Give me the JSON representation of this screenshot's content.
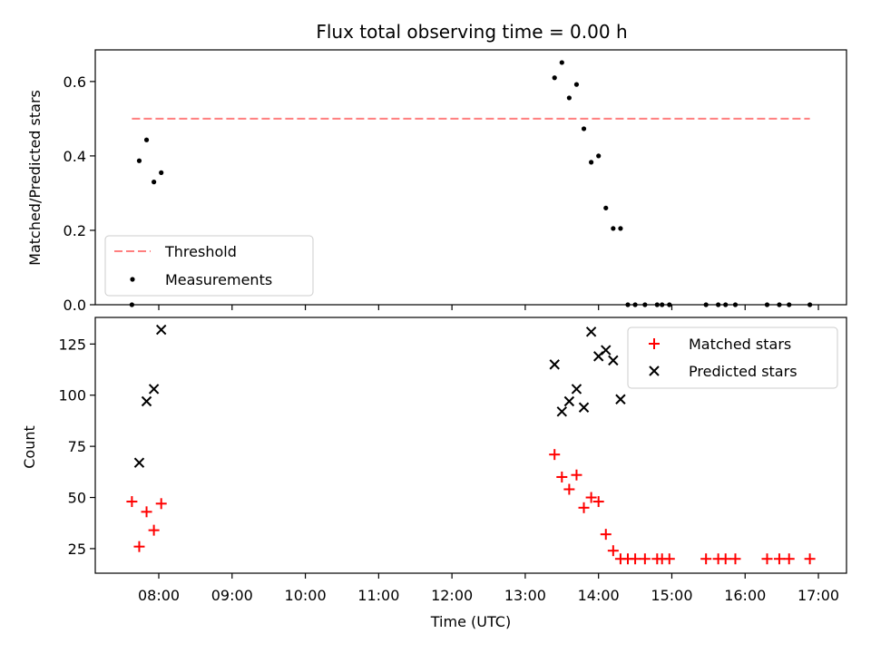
{
  "chart_data": [
    {
      "type": "scatter",
      "title": "Flux total observing time = 0.00 h",
      "xlabel": "",
      "ylabel": "Matched/Predicted stars",
      "ylim": [
        0,
        0.685
      ],
      "yticks": [
        0.0,
        0.2,
        0.4,
        0.6
      ],
      "ytick_labels": [
        "0.0",
        "0.2",
        "0.4",
        "0.6"
      ],
      "grid": false,
      "legend_position": "lower-left",
      "series": [
        {
          "name": "Threshold",
          "kind": "dashed-line",
          "color": "#ff7f7f",
          "x": [
            "07:38",
            "16:53"
          ],
          "y": [
            0.5,
            0.5
          ]
        },
        {
          "name": "Measurements",
          "kind": "dot",
          "color": "#000000",
          "x": [
            "07:38",
            "07:44",
            "07:50",
            "07:56",
            "08:02",
            "13:24",
            "13:30",
            "13:36",
            "13:42",
            "13:48",
            "13:54",
            "14:00",
            "14:06",
            "14:12",
            "14:18",
            "14:24",
            "14:30",
            "14:38",
            "14:48",
            "14:52",
            "14:58",
            "15:28",
            "15:38",
            "15:44",
            "15:52",
            "16:18",
            "16:28",
            "16:36",
            "16:53"
          ],
          "y": [
            0.0,
            0.387,
            0.443,
            0.33,
            0.355,
            0.61,
            0.651,
            0.556,
            0.592,
            0.473,
            0.383,
            0.4,
            0.26,
            0.205,
            0.205,
            0.0,
            0.0,
            0.0,
            0.0,
            0.0,
            0.0,
            0.0,
            0.0,
            0.0,
            0.0,
            0.0,
            0.0,
            0.0,
            0.0
          ]
        }
      ]
    },
    {
      "type": "scatter",
      "title": "",
      "xlabel": "Time (UTC)",
      "ylabel": "Count",
      "ylim": [
        13,
        138
      ],
      "yticks": [
        25,
        50,
        75,
        100,
        125
      ],
      "ytick_labels": [
        "25",
        "50",
        "75",
        "100",
        "125"
      ],
      "xlim": [
        "07:08",
        "17:23"
      ],
      "xticks": [
        "08:00",
        "09:00",
        "10:00",
        "11:00",
        "12:00",
        "13:00",
        "14:00",
        "15:00",
        "16:00",
        "17:00"
      ],
      "grid": false,
      "legend_position": "upper-right",
      "series": [
        {
          "name": "Matched stars",
          "kind": "plus",
          "color": "#ff0000",
          "x": [
            "07:38",
            "07:44",
            "07:50",
            "07:56",
            "08:02",
            "13:24",
            "13:30",
            "13:36",
            "13:42",
            "13:48",
            "13:54",
            "14:00",
            "14:06",
            "14:12",
            "14:18",
            "14:24",
            "14:30",
            "14:38",
            "14:48",
            "14:52",
            "14:58",
            "15:28",
            "15:38",
            "15:44",
            "15:52",
            "16:18",
            "16:28",
            "16:36",
            "16:53"
          ],
          "y": [
            48,
            26,
            43,
            34,
            47,
            71,
            60,
            54,
            61,
            45,
            50,
            48,
            32,
            24,
            20,
            20,
            20,
            20,
            20,
            20,
            20,
            20,
            20,
            20,
            20,
            20,
            20,
            20,
            20
          ]
        },
        {
          "name": "Predicted stars",
          "kind": "x",
          "color": "#000000",
          "x": [
            "07:44",
            "07:50",
            "07:56",
            "08:02",
            "13:24",
            "13:30",
            "13:36",
            "13:42",
            "13:48",
            "13:54",
            "14:00",
            "14:06",
            "14:12",
            "14:18"
          ],
          "y": [
            67,
            97,
            103,
            132,
            115,
            92,
            97,
            103,
            94,
            131,
            119,
            122,
            117,
            98
          ]
        }
      ]
    }
  ]
}
